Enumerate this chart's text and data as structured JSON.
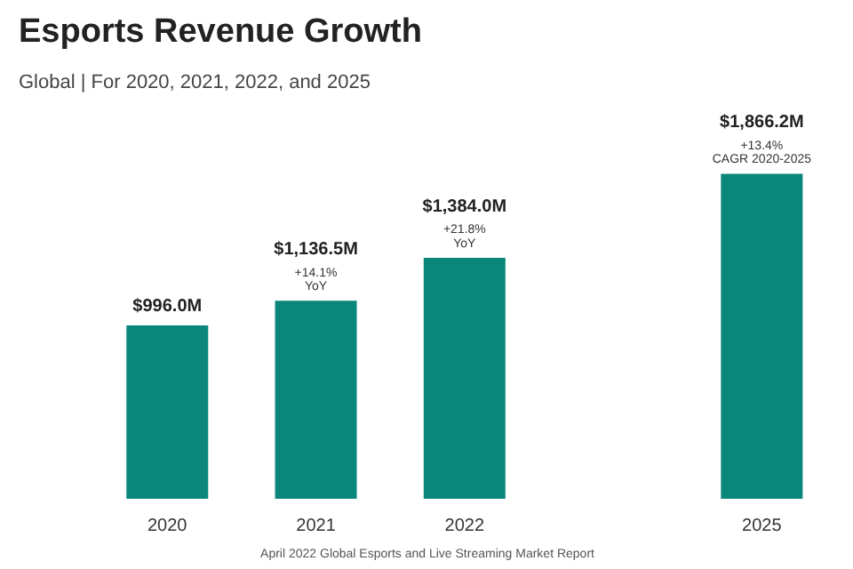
{
  "chart_data": {
    "type": "bar",
    "title": "Esports Revenue Growth",
    "subtitle": "Global | For 2020, 2021, 2022, and 2025",
    "categories": [
      "2020",
      "2021",
      "2022",
      null,
      "2025"
    ],
    "values": [
      996.0,
      1136.5,
      1384.0,
      null,
      1866.2
    ],
    "value_labels": [
      "$996.0M",
      "$1,136.5M",
      "$1,384.0M",
      null,
      "$1,866.2M"
    ],
    "color": "#0a877a",
    "grid": false,
    "annotations": [
      {
        "text": "+14.1%\nYoY",
        "x": "2021",
        "y": 1136.5
      },
      {
        "text": "+21.8%\nYoY",
        "x": "2022",
        "y": 1384.0
      },
      {
        "text": "+13.4%\nCAGR 2020-2025",
        "x": "2025",
        "y": 1866.2
      },
      "April 2022 Global Esports and Live Streaming Market Report"
    ]
  }
}
